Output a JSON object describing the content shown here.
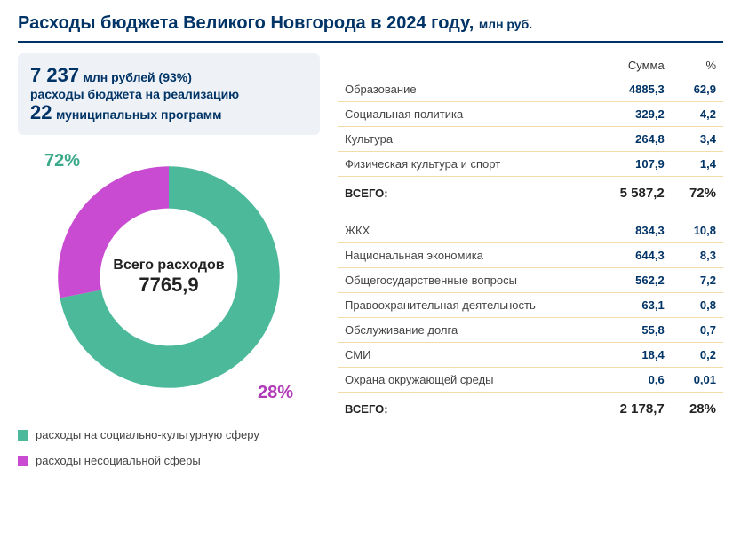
{
  "title_main": "Расходы бюджета Великого Новгорода в 2024 году, ",
  "title_unit": "млн руб.",
  "summary": {
    "amount": "7 237",
    "amount_unit": "млн рублей (93%)",
    "line2": "расходы бюджета  на реализацию",
    "count": "22",
    "count_label": "муниципальных программ"
  },
  "chart": {
    "type": "donut",
    "center_label": "Всего расходов",
    "center_value": "7765,9",
    "slices": [
      {
        "pct": 72,
        "color": "#4cb99a",
        "label_pct": "72%"
      },
      {
        "pct": 28,
        "color": "#c94bd1",
        "label_pct": "28%"
      }
    ],
    "hole_ratio": 0.62,
    "bg": "#ffffff"
  },
  "legend": [
    {
      "color": "#4cb99a",
      "text": "расходы на социально-культурную сферу"
    },
    {
      "color": "#c94bd1",
      "text": "расходы несоциальной сферы"
    }
  ],
  "table": {
    "headers": [
      "",
      "Сумма",
      "%"
    ],
    "group1": {
      "rows": [
        {
          "name": "Образование",
          "sum": "4885,3",
          "pct": "62,9"
        },
        {
          "name": "Социальная политика",
          "sum": "329,2",
          "pct": "4,2"
        },
        {
          "name": "Культура",
          "sum": "264,8",
          "pct": "3,4"
        },
        {
          "name": "Физическая культура и спорт",
          "sum": "107,9",
          "pct": "1,4"
        }
      ],
      "total": {
        "name": "ВСЕГО:",
        "sum": "5 587,2",
        "pct": "72%"
      }
    },
    "group2": {
      "rows": [
        {
          "name": "ЖКХ",
          "sum": "834,3",
          "pct": "10,8"
        },
        {
          "name": "Национальная экономика",
          "sum": "644,3",
          "pct": "8,3"
        },
        {
          "name": "Общегосударственные вопросы",
          "sum": "562,2",
          "pct": "7,2"
        },
        {
          "name": "Правоохранительная деятельность",
          "sum": "63,1",
          "pct": "0,8"
        },
        {
          "name": "Обслуживание долга",
          "sum": "55,8",
          "pct": "0,7"
        },
        {
          "name": "СМИ",
          "sum": "18,4",
          "pct": "0,2"
        },
        {
          "name": "Охрана окружающей среды",
          "sum": "0,6",
          "pct": "0,01"
        }
      ],
      "total": {
        "name": "ВСЕГО:",
        "sum": "2 178,7",
        "pct": "28%"
      }
    },
    "row_border_color": "#f3dca8",
    "num_color": "#003366"
  }
}
